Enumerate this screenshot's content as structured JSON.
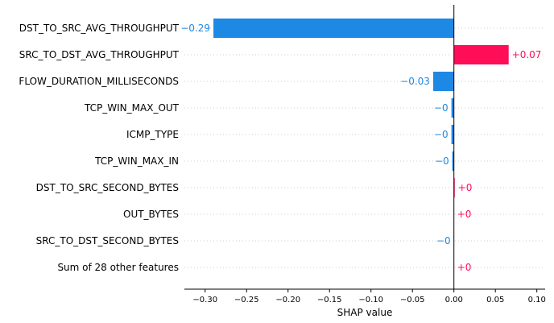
{
  "chart_data": {
    "type": "bar",
    "orientation": "horizontal",
    "xlabel": "SHAP value",
    "xlim": [
      -0.325,
      0.11
    ],
    "xticks": [
      -0.3,
      -0.25,
      -0.2,
      -0.15,
      -0.1,
      -0.05,
      0.0,
      0.05,
      0.1
    ],
    "xtick_labels": [
      "−0.30",
      "−0.25",
      "−0.20",
      "−0.15",
      "−0.10",
      "−0.05",
      "0.00",
      "0.05",
      "0.10"
    ],
    "grid": "horizontal dotted row lines",
    "colors": {
      "positive": "#ff0d57",
      "negative": "#1e88e5"
    },
    "categories": [
      "DST_TO_SRC_AVG_THROUGHPUT",
      "SRC_TO_DST_AVG_THROUGHPUT",
      "FLOW_DURATION_MILLISECONDS",
      "TCP_WIN_MAX_OUT",
      "ICMP_TYPE",
      "TCP_WIN_MAX_IN",
      "DST_TO_SRC_SECOND_BYTES",
      "OUT_BYTES",
      "SRC_TO_DST_SECOND_BYTES",
      "Sum of 28 other features"
    ],
    "values": [
      -0.29,
      0.066,
      -0.025,
      -0.003,
      -0.003,
      -0.002,
      0.001,
      0.0,
      0.0,
      0.0
    ],
    "value_labels": [
      "−0.29",
      "+0.07",
      "−0.03",
      "−0",
      "−0",
      "−0",
      "+0",
      "+0",
      "−0",
      "+0"
    ]
  }
}
